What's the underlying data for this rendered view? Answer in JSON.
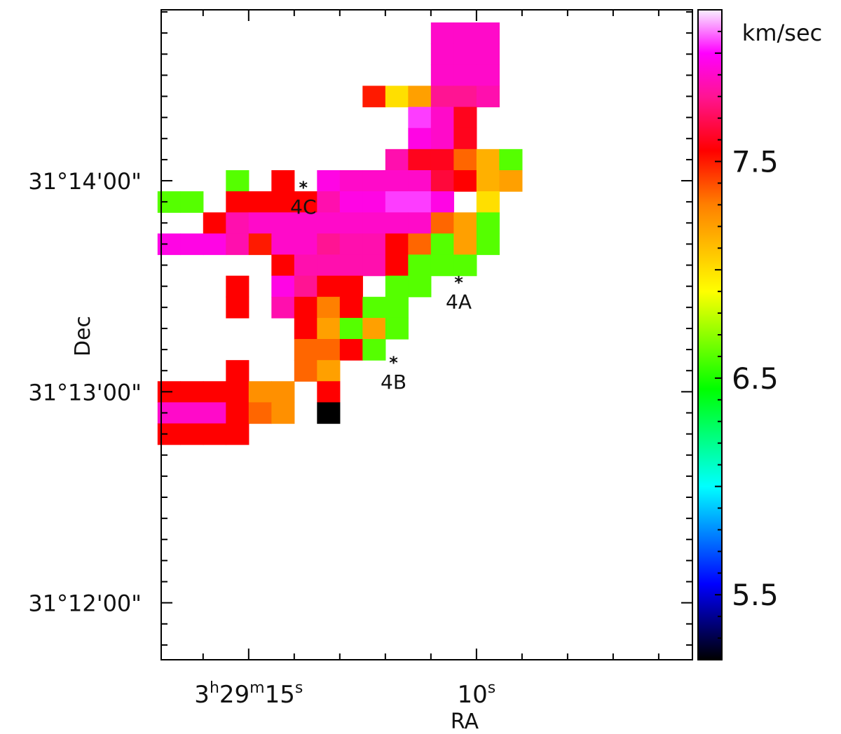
{
  "chart_data": {
    "type": "heatmap",
    "title": "",
    "xlabel": "RA",
    "ylabel": "Dec",
    "x_ticks": [
      {
        "value": 15,
        "h": "3",
        "m": "29",
        "s": "15"
      },
      {
        "value": 10,
        "s": "10"
      }
    ],
    "y_ticks": [
      {
        "value": 14.0,
        "label": "31°14'00\""
      },
      {
        "value": 13.0,
        "label": "31°13'00\""
      },
      {
        "value": 12.0,
        "label": "31°12'00\""
      }
    ],
    "xlim_seconds": [
      16.92,
      5.26
    ],
    "ylim_arcmin": [
      11.73,
      14.81
    ],
    "pixel_size": {
      "ra_seconds": 0.5,
      "dec_arcmin": 0.1
    },
    "colorbar": {
      "label": "km/sec",
      "range": [
        5.2,
        8.2
      ],
      "ticks": [
        {
          "value": 7.5,
          "label": "7.5"
        },
        {
          "value": 6.5,
          "label": "6.5"
        },
        {
          "value": 5.5,
          "label": "5.5"
        }
      ],
      "stops": [
        {
          "value": 5.2,
          "color": "#000000"
        },
        {
          "value": 5.55,
          "color": "#0000ff"
        },
        {
          "value": 6.0,
          "color": "#00ffff"
        },
        {
          "value": 6.45,
          "color": "#00ff00"
        },
        {
          "value": 6.9,
          "color": "#ffff00"
        },
        {
          "value": 7.3,
          "color": "#ff8000"
        },
        {
          "value": 7.55,
          "color": "#ff0000"
        },
        {
          "value": 7.8,
          "color": "#ff1493"
        },
        {
          "value": 8.0,
          "color": "#ff00ff"
        },
        {
          "value": 8.2,
          "color": "#f8f0ff"
        }
      ]
    },
    "cells": [
      {
        "ra": 10.75,
        "dec": 14.7,
        "v": 7.9
      },
      {
        "ra": 10.25,
        "dec": 14.7,
        "v": 7.9
      },
      {
        "ra": 9.75,
        "dec": 14.7,
        "v": 7.9
      },
      {
        "ra": 10.75,
        "dec": 14.6,
        "v": 7.9
      },
      {
        "ra": 10.25,
        "dec": 14.6,
        "v": 7.9
      },
      {
        "ra": 9.75,
        "dec": 14.6,
        "v": 7.9
      },
      {
        "ra": 10.75,
        "dec": 14.5,
        "v": 7.9
      },
      {
        "ra": 10.25,
        "dec": 14.5,
        "v": 7.9
      },
      {
        "ra": 9.75,
        "dec": 14.5,
        "v": 7.9
      },
      {
        "ra": 12.25,
        "dec": 14.4,
        "v": 7.5
      },
      {
        "ra": 11.75,
        "dec": 14.4,
        "v": 7.0
      },
      {
        "ra": 11.25,
        "dec": 14.4,
        "v": 7.2
      },
      {
        "ra": 10.75,
        "dec": 14.4,
        "v": 7.8
      },
      {
        "ra": 10.25,
        "dec": 14.4,
        "v": 7.8
      },
      {
        "ra": 9.75,
        "dec": 14.4,
        "v": 7.85
      },
      {
        "ra": 11.25,
        "dec": 14.3,
        "v": 8.05
      },
      {
        "ra": 10.75,
        "dec": 14.3,
        "v": 7.9
      },
      {
        "ra": 10.25,
        "dec": 14.3,
        "v": 7.6
      },
      {
        "ra": 11.25,
        "dec": 14.2,
        "v": 7.95
      },
      {
        "ra": 10.75,
        "dec": 14.2,
        "v": 7.9
      },
      {
        "ra": 10.25,
        "dec": 14.2,
        "v": 7.6
      },
      {
        "ra": 11.75,
        "dec": 14.1,
        "v": 7.85
      },
      {
        "ra": 11.25,
        "dec": 14.1,
        "v": 7.6
      },
      {
        "ra": 10.75,
        "dec": 14.1,
        "v": 7.6
      },
      {
        "ra": 10.25,
        "dec": 14.1,
        "v": 7.35
      },
      {
        "ra": 9.75,
        "dec": 14.1,
        "v": 7.15
      },
      {
        "ra": 9.25,
        "dec": 14.1,
        "v": 6.6
      },
      {
        "ra": 15.25,
        "dec": 14.0,
        "v": 6.6
      },
      {
        "ra": 14.25,
        "dec": 14.0,
        "v": 7.55
      },
      {
        "ra": 13.25,
        "dec": 14.0,
        "v": 7.95
      },
      {
        "ra": 12.75,
        "dec": 14.0,
        "v": 7.9
      },
      {
        "ra": 12.25,
        "dec": 14.0,
        "v": 7.9
      },
      {
        "ra": 11.75,
        "dec": 14.0,
        "v": 7.9
      },
      {
        "ra": 11.25,
        "dec": 14.0,
        "v": 7.9
      },
      {
        "ra": 10.75,
        "dec": 14.0,
        "v": 7.65
      },
      {
        "ra": 10.25,
        "dec": 14.0,
        "v": 7.55
      },
      {
        "ra": 9.75,
        "dec": 14.0,
        "v": 7.15
      },
      {
        "ra": 9.25,
        "dec": 14.0,
        "v": 7.2
      },
      {
        "ra": 16.75,
        "dec": 13.9,
        "v": 6.6
      },
      {
        "ra": 16.25,
        "dec": 13.9,
        "v": 6.6
      },
      {
        "ra": 15.25,
        "dec": 13.9,
        "v": 7.55
      },
      {
        "ra": 14.75,
        "dec": 13.9,
        "v": 7.55
      },
      {
        "ra": 14.25,
        "dec": 13.9,
        "v": 7.55
      },
      {
        "ra": 13.75,
        "dec": 13.9,
        "v": 7.55
      },
      {
        "ra": 13.25,
        "dec": 13.9,
        "v": 7.85
      },
      {
        "ra": 12.75,
        "dec": 13.9,
        "v": 7.95
      },
      {
        "ra": 12.25,
        "dec": 13.9,
        "v": 7.95
      },
      {
        "ra": 11.75,
        "dec": 13.9,
        "v": 8.05
      },
      {
        "ra": 11.25,
        "dec": 13.9,
        "v": 8.05
      },
      {
        "ra": 10.75,
        "dec": 13.9,
        "v": 7.95
      },
      {
        "ra": 9.75,
        "dec": 13.9,
        "v": 7.0
      },
      {
        "ra": 15.75,
        "dec": 13.8,
        "v": 7.55
      },
      {
        "ra": 15.25,
        "dec": 13.8,
        "v": 7.85
      },
      {
        "ra": 14.75,
        "dec": 13.8,
        "v": 7.9
      },
      {
        "ra": 14.25,
        "dec": 13.8,
        "v": 7.9
      },
      {
        "ra": 13.75,
        "dec": 13.8,
        "v": 7.9
      },
      {
        "ra": 13.25,
        "dec": 13.8,
        "v": 7.9
      },
      {
        "ra": 12.75,
        "dec": 13.8,
        "v": 7.9
      },
      {
        "ra": 12.25,
        "dec": 13.8,
        "v": 7.9
      },
      {
        "ra": 11.75,
        "dec": 13.8,
        "v": 7.9
      },
      {
        "ra": 11.25,
        "dec": 13.8,
        "v": 7.9
      },
      {
        "ra": 10.75,
        "dec": 13.8,
        "v": 7.35
      },
      {
        "ra": 10.25,
        "dec": 13.8,
        "v": 7.2
      },
      {
        "ra": 9.75,
        "dec": 13.8,
        "v": 6.6
      },
      {
        "ra": 16.75,
        "dec": 13.7,
        "v": 7.95
      },
      {
        "ra": 16.25,
        "dec": 13.7,
        "v": 7.95
      },
      {
        "ra": 15.75,
        "dec": 13.7,
        "v": 7.95
      },
      {
        "ra": 15.25,
        "dec": 13.7,
        "v": 7.85
      },
      {
        "ra": 14.75,
        "dec": 13.7,
        "v": 7.5
      },
      {
        "ra": 14.25,
        "dec": 13.7,
        "v": 7.9
      },
      {
        "ra": 13.75,
        "dec": 13.7,
        "v": 7.9
      },
      {
        "ra": 13.25,
        "dec": 13.7,
        "v": 7.8
      },
      {
        "ra": 12.75,
        "dec": 13.7,
        "v": 7.85
      },
      {
        "ra": 12.25,
        "dec": 13.7,
        "v": 7.85
      },
      {
        "ra": 11.75,
        "dec": 13.7,
        "v": 7.55
      },
      {
        "ra": 11.25,
        "dec": 13.7,
        "v": 7.35
      },
      {
        "ra": 10.75,
        "dec": 13.7,
        "v": 6.6
      },
      {
        "ra": 10.25,
        "dec": 13.7,
        "v": 7.2
      },
      {
        "ra": 9.75,
        "dec": 13.7,
        "v": 6.6
      },
      {
        "ra": 14.25,
        "dec": 13.6,
        "v": 7.55
      },
      {
        "ra": 13.75,
        "dec": 13.6,
        "v": 7.85
      },
      {
        "ra": 13.25,
        "dec": 13.6,
        "v": 7.85
      },
      {
        "ra": 12.75,
        "dec": 13.6,
        "v": 7.85
      },
      {
        "ra": 12.25,
        "dec": 13.6,
        "v": 7.85
      },
      {
        "ra": 11.75,
        "dec": 13.6,
        "v": 7.55
      },
      {
        "ra": 11.25,
        "dec": 13.6,
        "v": 6.6
      },
      {
        "ra": 10.75,
        "dec": 13.6,
        "v": 6.6
      },
      {
        "ra": 10.25,
        "dec": 13.6,
        "v": 6.6
      },
      {
        "ra": 15.25,
        "dec": 13.5,
        "v": 7.55
      },
      {
        "ra": 14.25,
        "dec": 13.5,
        "v": 7.95
      },
      {
        "ra": 13.75,
        "dec": 13.5,
        "v": 7.8
      },
      {
        "ra": 13.25,
        "dec": 13.5,
        "v": 7.55
      },
      {
        "ra": 12.75,
        "dec": 13.5,
        "v": 7.55
      },
      {
        "ra": 11.75,
        "dec": 13.5,
        "v": 6.6
      },
      {
        "ra": 11.25,
        "dec": 13.5,
        "v": 6.6
      },
      {
        "ra": 15.25,
        "dec": 13.4,
        "v": 7.55
      },
      {
        "ra": 14.25,
        "dec": 13.4,
        "v": 7.85
      },
      {
        "ra": 13.75,
        "dec": 13.4,
        "v": 7.55
      },
      {
        "ra": 13.25,
        "dec": 13.4,
        "v": 7.3
      },
      {
        "ra": 12.75,
        "dec": 13.4,
        "v": 7.55
      },
      {
        "ra": 12.25,
        "dec": 13.4,
        "v": 6.6
      },
      {
        "ra": 11.75,
        "dec": 13.4,
        "v": 6.6
      },
      {
        "ra": 13.75,
        "dec": 13.3,
        "v": 7.55
      },
      {
        "ra": 13.25,
        "dec": 13.3,
        "v": 7.2
      },
      {
        "ra": 12.75,
        "dec": 13.3,
        "v": 6.6
      },
      {
        "ra": 12.25,
        "dec": 13.3,
        "v": 7.2
      },
      {
        "ra": 11.75,
        "dec": 13.3,
        "v": 6.6
      },
      {
        "ra": 13.75,
        "dec": 13.2,
        "v": 7.35
      },
      {
        "ra": 13.25,
        "dec": 13.2,
        "v": 7.35
      },
      {
        "ra": 12.75,
        "dec": 13.2,
        "v": 7.55
      },
      {
        "ra": 12.25,
        "dec": 13.2,
        "v": 6.6
      },
      {
        "ra": 15.25,
        "dec": 13.1,
        "v": 7.55
      },
      {
        "ra": 13.75,
        "dec": 13.1,
        "v": 7.35
      },
      {
        "ra": 13.25,
        "dec": 13.1,
        "v": 7.2
      },
      {
        "ra": 16.75,
        "dec": 13.0,
        "v": 7.55
      },
      {
        "ra": 16.25,
        "dec": 13.0,
        "v": 7.55
      },
      {
        "ra": 15.75,
        "dec": 13.0,
        "v": 7.55
      },
      {
        "ra": 15.25,
        "dec": 13.0,
        "v": 7.55
      },
      {
        "ra": 14.75,
        "dec": 13.0,
        "v": 7.25
      },
      {
        "ra": 14.25,
        "dec": 13.0,
        "v": 7.25
      },
      {
        "ra": 13.25,
        "dec": 13.0,
        "v": 7.55
      },
      {
        "ra": 16.75,
        "dec": 12.9,
        "v": 7.9
      },
      {
        "ra": 16.25,
        "dec": 12.9,
        "v": 7.9
      },
      {
        "ra": 15.75,
        "dec": 12.9,
        "v": 7.9
      },
      {
        "ra": 15.25,
        "dec": 12.9,
        "v": 7.55
      },
      {
        "ra": 14.75,
        "dec": 12.9,
        "v": 7.35
      },
      {
        "ra": 14.25,
        "dec": 12.9,
        "v": 7.25
      },
      {
        "ra": 13.25,
        "dec": 12.9,
        "v": 5.2
      },
      {
        "ra": 16.75,
        "dec": 12.8,
        "v": 7.55
      },
      {
        "ra": 16.25,
        "dec": 12.8,
        "v": 7.55
      },
      {
        "ra": 15.75,
        "dec": 12.8,
        "v": 7.55
      },
      {
        "ra": 15.25,
        "dec": 12.8,
        "v": 7.55
      }
    ],
    "markers": [
      {
        "label": "4C",
        "ra": 13.8,
        "dec": 13.97
      },
      {
        "label": "4A",
        "ra": 10.39,
        "dec": 13.52
      },
      {
        "label": "4B",
        "ra": 11.82,
        "dec": 13.14
      }
    ]
  }
}
